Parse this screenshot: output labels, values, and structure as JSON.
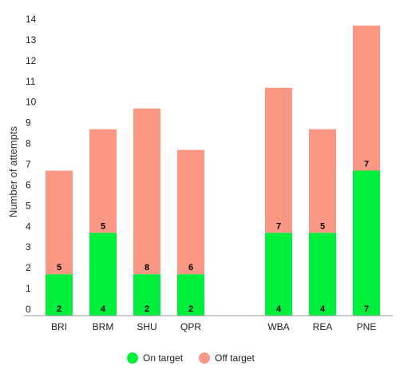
{
  "chart_data": {
    "type": "bar",
    "stacked": true,
    "title": "",
    "xlabel": "",
    "ylabel": "Number of attempts",
    "ylim": [
      0,
      14
    ],
    "yticks": [
      0,
      1,
      2,
      3,
      4,
      5,
      6,
      7,
      8,
      9,
      10,
      11,
      12,
      13,
      14
    ],
    "grid": false,
    "legend": "bottom-center",
    "categories": [
      "BRI",
      "BRM",
      "SHU",
      "QPR",
      "WBA",
      "REA",
      "PNE"
    ],
    "series": [
      {
        "name": "On target",
        "color": "#00ee3c",
        "values": [
          2,
          4,
          2,
          2,
          4,
          4,
          7
        ]
      },
      {
        "name": "Off target",
        "color": "#fa9785",
        "values": [
          5,
          5,
          8,
          6,
          7,
          5,
          7
        ]
      }
    ]
  }
}
